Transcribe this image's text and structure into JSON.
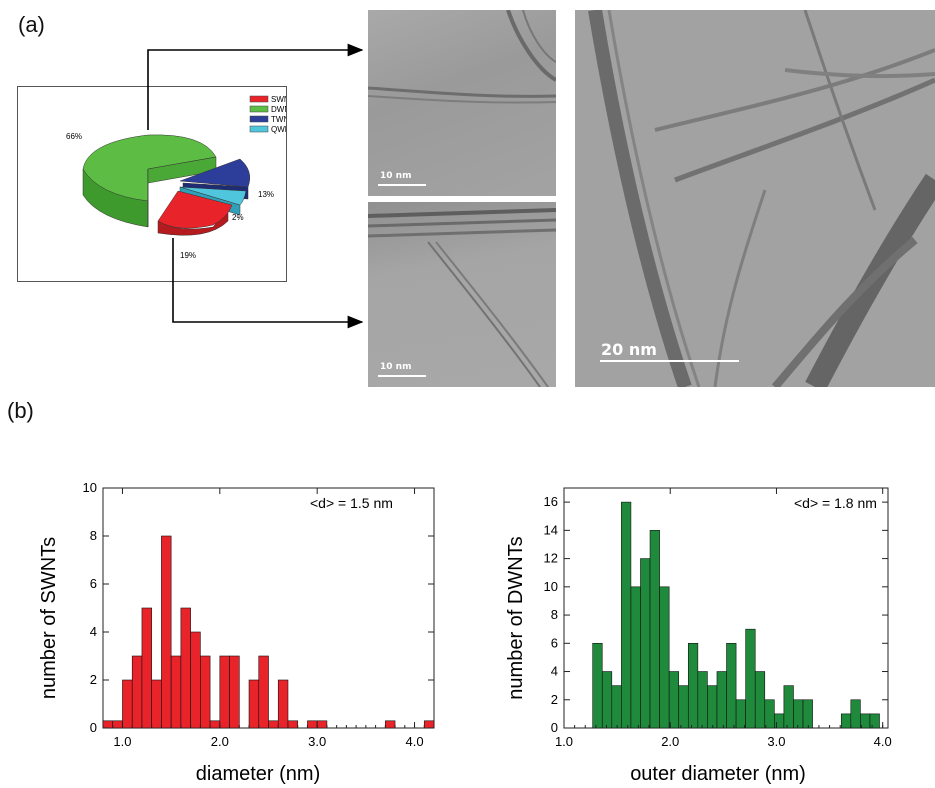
{
  "figure": {
    "panel_a_label": "(a)",
    "panel_b_label": "(b)",
    "tem_images": [
      {
        "scale_label": "10 nm"
      },
      {
        "scale_label": "10 nm"
      },
      {
        "scale_label": "20 nm"
      }
    ]
  },
  "chart_data": [
    {
      "type": "pie",
      "legend": [
        "SWNT",
        "DWNT",
        "TWNT",
        "QWNT"
      ],
      "values": [
        19,
        66,
        13,
        2
      ],
      "value_labels": [
        "19%",
        "66%",
        "13%",
        "2%"
      ],
      "colors": [
        "#e8242a",
        "#5cbc43",
        "#2d3e9a",
        "#4fc6dc"
      ],
      "legend_position": "top-right",
      "style": "3d-exploded"
    },
    {
      "type": "bar",
      "annotation": "<d> = 1.5 nm",
      "xlabel": "diameter (nm)",
      "ylabel": "number of SWNTs",
      "xlim": [
        0.8,
        4.2
      ],
      "ylim": [
        0,
        10
      ],
      "xticks": [
        "1.0",
        "2.0",
        "3.0",
        "4.0"
      ],
      "yticks": [
        "0",
        "2",
        "4",
        "6",
        "8",
        "10"
      ],
      "bin_width": 0.1,
      "bins_start": [
        0.8,
        0.9,
        1.0,
        1.1,
        1.2,
        1.3,
        1.4,
        1.5,
        1.6,
        1.7,
        1.8,
        1.9,
        2.0,
        2.1,
        2.2,
        2.3,
        2.4,
        2.5,
        2.6,
        2.7,
        2.8,
        2.9,
        3.0,
        3.1,
        3.2,
        3.3,
        3.4,
        3.5,
        3.6,
        3.7,
        3.8,
        3.9,
        4.0,
        4.1
      ],
      "values": [
        0.3,
        0.3,
        2,
        3,
        5,
        2,
        8,
        3,
        5,
        4,
        3,
        0.3,
        3,
        3,
        0,
        2,
        3,
        0.3,
        2,
        0.3,
        0,
        0.3,
        0.3,
        0,
        0,
        0,
        0,
        0,
        0,
        0.3,
        0,
        0,
        0,
        0.3
      ],
      "color": "#e8242a"
    },
    {
      "type": "bar",
      "annotation": "<d> = 1.8 nm",
      "xlabel": "outer diameter (nm)",
      "ylabel": "number of DWNTs",
      "xlim": [
        1.0,
        4.05
      ],
      "ylim": [
        0,
        17
      ],
      "xticks": [
        "1.0",
        "2.0",
        "3.0",
        "4.0"
      ],
      "yticks": [
        "0",
        "2",
        "4",
        "6",
        "8",
        "10",
        "12",
        "14",
        "16"
      ],
      "bin_width": 0.09,
      "bins_start": [
        1.27,
        1.36,
        1.45,
        1.54,
        1.63,
        1.72,
        1.81,
        1.9,
        1.99,
        2.08,
        2.17,
        2.26,
        2.35,
        2.44,
        2.53,
        2.62,
        2.71,
        2.8,
        2.89,
        2.98,
        3.07,
        3.16,
        3.25,
        3.34,
        3.43,
        3.52,
        3.61,
        3.7,
        3.79,
        3.88,
        3.97
      ],
      "values": [
        6,
        4,
        3,
        16,
        10,
        12,
        14,
        10,
        4,
        3,
        6,
        4,
        3,
        4,
        6,
        2,
        7,
        4,
        2,
        1,
        3,
        2,
        2,
        0,
        0,
        0,
        1,
        2,
        1,
        1,
        0
      ],
      "color": "#1f8a3c"
    }
  ]
}
